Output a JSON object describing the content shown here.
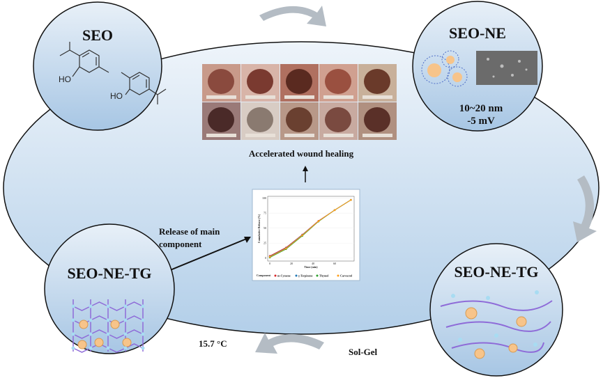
{
  "circles": {
    "seo": {
      "title": "SEO",
      "molecule_labels": [
        "HO",
        "HO"
      ]
    },
    "seo_ne": {
      "title": "SEO-NE",
      "size": "10~20 nm",
      "zeta": "-5 mV"
    },
    "seo_ne_tg_left": {
      "title": "SEO-NE-TG"
    },
    "seo_ne_tg_right": {
      "title": "SEO-NE-TG"
    }
  },
  "labels": {
    "wound_healing": "Accelerated wound healing",
    "release_line1": "Release of main",
    "release_line2": "component",
    "temperature": "15.7 °C",
    "sol_gel": "Sol-Gel"
  },
  "colors": {
    "circle_fill_top": "#e4eef8",
    "circle_fill_bottom": "#a9c8e6",
    "droplet": "#f7c48a",
    "network": "#8e6bd8",
    "node": "#a8dcf2",
    "arrow": "#b4bcc4"
  },
  "chart_data": {
    "type": "line",
    "xlabel": "Time (min)",
    "ylabel": "Cumulative Release (%)",
    "x": [
      0,
      15,
      30,
      45,
      60,
      75
    ],
    "xticks": [
      0,
      20,
      40,
      60
    ],
    "yticks": [
      0,
      25,
      50,
      75,
      100
    ],
    "xlim": [
      -2,
      78
    ],
    "ylim": [
      -5,
      103
    ],
    "legend_title": "Component",
    "legend_position": "bottom",
    "series": [
      {
        "name": "m-Cymene",
        "color": "#d62728",
        "values": [
          3.5,
          17.5,
          39,
          62,
          80,
          97
        ]
      },
      {
        "name": "γ-Terpinene",
        "color": "#1f77b4",
        "values": [
          2.5,
          16.5,
          38.5,
          61.5,
          80,
          97
        ]
      },
      {
        "name": "Thymol",
        "color": "#2ca02c",
        "values": [
          1,
          15,
          37,
          61,
          80,
          97
        ]
      },
      {
        "name": "Carvacrol",
        "color": "#ff9f1c",
        "values": [
          2,
          16,
          38,
          61.5,
          80,
          97
        ]
      }
    ]
  }
}
